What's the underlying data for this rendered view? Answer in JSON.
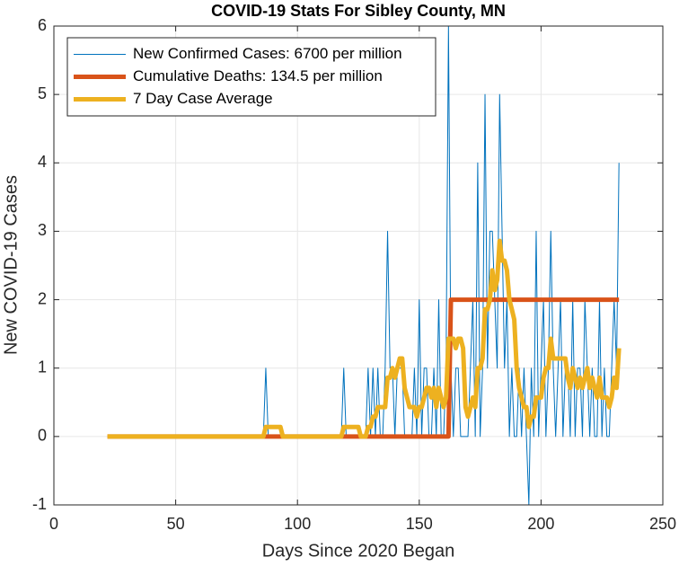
{
  "chart_data": {
    "type": "line",
    "title": "COVID-19 Stats For Sibley County, MN",
    "xlabel": "Days Since 2020 Began",
    "ylabel": "New COVID-19 Cases",
    "xlim": [
      0,
      250
    ],
    "xticks": [
      0,
      50,
      100,
      150,
      200,
      250
    ],
    "ylim": [
      -1,
      6
    ],
    "yticks": [
      -1,
      0,
      1,
      2,
      3,
      4,
      5,
      6
    ],
    "grid": true,
    "legend_position": "northwest",
    "x": [
      22,
      23,
      24,
      25,
      26,
      27,
      28,
      29,
      30,
      31,
      32,
      33,
      34,
      35,
      36,
      37,
      38,
      39,
      40,
      41,
      42,
      43,
      44,
      45,
      46,
      47,
      48,
      49,
      50,
      51,
      52,
      53,
      54,
      55,
      56,
      57,
      58,
      59,
      60,
      61,
      62,
      63,
      64,
      65,
      66,
      67,
      68,
      69,
      70,
      71,
      72,
      73,
      74,
      75,
      76,
      77,
      78,
      79,
      80,
      81,
      82,
      83,
      84,
      85,
      86,
      87,
      88,
      89,
      90,
      91,
      92,
      93,
      94,
      95,
      96,
      97,
      98,
      99,
      100,
      101,
      102,
      103,
      104,
      105,
      106,
      107,
      108,
      109,
      110,
      111,
      112,
      113,
      114,
      115,
      116,
      117,
      118,
      119,
      120,
      121,
      122,
      123,
      124,
      125,
      126,
      127,
      128,
      129,
      130,
      131,
      132,
      133,
      134,
      135,
      136,
      137,
      138,
      139,
      140,
      141,
      142,
      143,
      144,
      145,
      146,
      147,
      148,
      149,
      150,
      151,
      152,
      153,
      154,
      155,
      156,
      157,
      158,
      159,
      160,
      161,
      162,
      163,
      164,
      165,
      166,
      167,
      168,
      169,
      170,
      171,
      172,
      173,
      174,
      175,
      176,
      177,
      178,
      179,
      180,
      181,
      182,
      183,
      184,
      185,
      186,
      187,
      188,
      189,
      190,
      191,
      192,
      193,
      194,
      195,
      196,
      197,
      198,
      199,
      200,
      201,
      202,
      203,
      204,
      205,
      206,
      207,
      208,
      209,
      210,
      211,
      212,
      213,
      214,
      215,
      216,
      217,
      218,
      219,
      220,
      221,
      222,
      223,
      224,
      225,
      226,
      227,
      228,
      229,
      230,
      231,
      232
    ],
    "series": [
      {
        "name": "New Confirmed Cases: 6700 per million",
        "color": "#0072BD",
        "width": 1,
        "values": [
          0,
          0,
          0,
          0,
          0,
          0,
          0,
          0,
          0,
          0,
          0,
          0,
          0,
          0,
          0,
          0,
          0,
          0,
          0,
          0,
          0,
          0,
          0,
          0,
          0,
          0,
          0,
          0,
          0,
          0,
          0,
          0,
          0,
          0,
          0,
          0,
          0,
          0,
          0,
          0,
          0,
          0,
          0,
          0,
          0,
          0,
          0,
          0,
          0,
          0,
          0,
          0,
          0,
          0,
          0,
          0,
          0,
          0,
          0,
          0,
          0,
          0,
          0,
          0,
          0,
          1,
          0,
          0,
          0,
          0,
          0,
          0,
          0,
          0,
          0,
          0,
          0,
          0,
          0,
          0,
          0,
          0,
          0,
          0,
          0,
          0,
          0,
          0,
          0,
          0,
          0,
          0,
          0,
          0,
          0,
          0,
          0,
          1,
          0,
          0,
          0,
          0,
          0,
          0,
          0,
          0,
          0,
          1,
          0,
          1,
          0,
          1,
          0,
          0,
          1,
          3,
          1,
          1,
          0,
          1,
          1,
          1,
          0,
          0,
          0,
          0,
          1,
          0,
          2,
          0,
          1,
          1,
          0,
          0,
          1,
          0,
          2,
          0,
          0,
          1,
          6,
          1,
          0,
          1,
          1,
          0,
          0,
          0,
          0,
          1,
          2,
          0,
          4,
          0,
          1,
          5,
          1,
          3,
          3,
          2,
          1,
          5,
          3,
          1,
          2,
          0,
          1,
          0,
          0,
          1,
          0,
          1,
          0,
          -1,
          1,
          0,
          3,
          0,
          1,
          2,
          0,
          1,
          3,
          1,
          0,
          1,
          2,
          0,
          1,
          1,
          0,
          2,
          0,
          1,
          1,
          0,
          2,
          1,
          0,
          1,
          0,
          0,
          2,
          0,
          1,
          0,
          0,
          1,
          2,
          1,
          4
        ]
      },
      {
        "name": "Cumulative Deaths: 134.5 per million",
        "color": "#D95319",
        "width": 5,
        "values": [
          0,
          0,
          0,
          0,
          0,
          0,
          0,
          0,
          0,
          0,
          0,
          0,
          0,
          0,
          0,
          0,
          0,
          0,
          0,
          0,
          0,
          0,
          0,
          0,
          0,
          0,
          0,
          0,
          0,
          0,
          0,
          0,
          0,
          0,
          0,
          0,
          0,
          0,
          0,
          0,
          0,
          0,
          0,
          0,
          0,
          0,
          0,
          0,
          0,
          0,
          0,
          0,
          0,
          0,
          0,
          0,
          0,
          0,
          0,
          0,
          0,
          0,
          0,
          0,
          0,
          0,
          0,
          0,
          0,
          0,
          0,
          0,
          0,
          0,
          0,
          0,
          0,
          0,
          0,
          0,
          0,
          0,
          0,
          0,
          0,
          0,
          0,
          0,
          0,
          0,
          0,
          0,
          0,
          0,
          0,
          0,
          0,
          0,
          0,
          0,
          0,
          0,
          0,
          0,
          0,
          0,
          0,
          0,
          0,
          0,
          0,
          0,
          0,
          0,
          0,
          0,
          0,
          0,
          0,
          0,
          0,
          0,
          0,
          0,
          0,
          0,
          0,
          0,
          0,
          0,
          0,
          0,
          0,
          0,
          0,
          0,
          0,
          0,
          0,
          0,
          0,
          2,
          2,
          2,
          2,
          2,
          2,
          2,
          2,
          2,
          2,
          2,
          2,
          2,
          2,
          2,
          2,
          2,
          2,
          2,
          2,
          2,
          2,
          2,
          2,
          2,
          2,
          2,
          2,
          2,
          2,
          2,
          2,
          2,
          2,
          2,
          2,
          2,
          2,
          2,
          2,
          2,
          2,
          2,
          2,
          2,
          2,
          2,
          2,
          2,
          2,
          2,
          2,
          2,
          2,
          2,
          2,
          2,
          2,
          2,
          2,
          2,
          2,
          2,
          2,
          2,
          2,
          2,
          2,
          2,
          2
        ]
      },
      {
        "name": "7 Day Case Average",
        "color": "#EDB120",
        "width": 5,
        "values": [
          0,
          0,
          0,
          0,
          0,
          0,
          0,
          0,
          0,
          0,
          0,
          0,
          0,
          0,
          0,
          0,
          0,
          0,
          0,
          0,
          0,
          0,
          0,
          0,
          0,
          0,
          0,
          0,
          0,
          0,
          0,
          0,
          0,
          0,
          0,
          0,
          0,
          0,
          0,
          0,
          0,
          0,
          0,
          0,
          0,
          0,
          0,
          0,
          0,
          0,
          0,
          0,
          0,
          0,
          0,
          0,
          0,
          0,
          0,
          0,
          0,
          0,
          0,
          0,
          0,
          0.14,
          0.14,
          0.14,
          0.14,
          0.14,
          0.14,
          0.14,
          0,
          0,
          0,
          0,
          0,
          0,
          0,
          0,
          0,
          0,
          0,
          0,
          0,
          0,
          0,
          0,
          0,
          0,
          0,
          0,
          0,
          0,
          0,
          0,
          0,
          0.14,
          0.14,
          0.14,
          0.14,
          0.14,
          0.14,
          0.14,
          0,
          0,
          0,
          0.14,
          0.14,
          0.29,
          0.29,
          0.43,
          0.43,
          0.43,
          0.43,
          0.86,
          0.86,
          1,
          0.86,
          1,
          1.14,
          1.14,
          0.71,
          0.57,
          0.43,
          0.43,
          0.43,
          0.29,
          0.43,
          0.43,
          0.57,
          0.71,
          0.71,
          0.57,
          0.71,
          0.43,
          0.71,
          0.57,
          0.43,
          0.57,
          1.43,
          1.43,
          1.43,
          1.29,
          1.43,
          1.43,
          1.29,
          0.43,
          0.29,
          0.43,
          0.57,
          0.43,
          1,
          1,
          1.14,
          1.86,
          1.86,
          2,
          2.43,
          2.14,
          2.29,
          2.86,
          2.57,
          2.57,
          2.43,
          2,
          1.86,
          1.71,
          1,
          0.71,
          0.57,
          0.43,
          0.43,
          0.14,
          0.29,
          0.29,
          0.57,
          0.57,
          0.57,
          0.86,
          1,
          1,
          1.43,
          1.14,
          1.14,
          1.14,
          1.14,
          1.14,
          1.14,
          0.86,
          0.71,
          1,
          0.86,
          0.71,
          0.86,
          0.71,
          0.86,
          1,
          0.71,
          0.86,
          0.71,
          0.57,
          0.86,
          0.57,
          0.57,
          0.57,
          0.43,
          0.57,
          0.86,
          0.71,
          1.29
        ]
      }
    ]
  }
}
